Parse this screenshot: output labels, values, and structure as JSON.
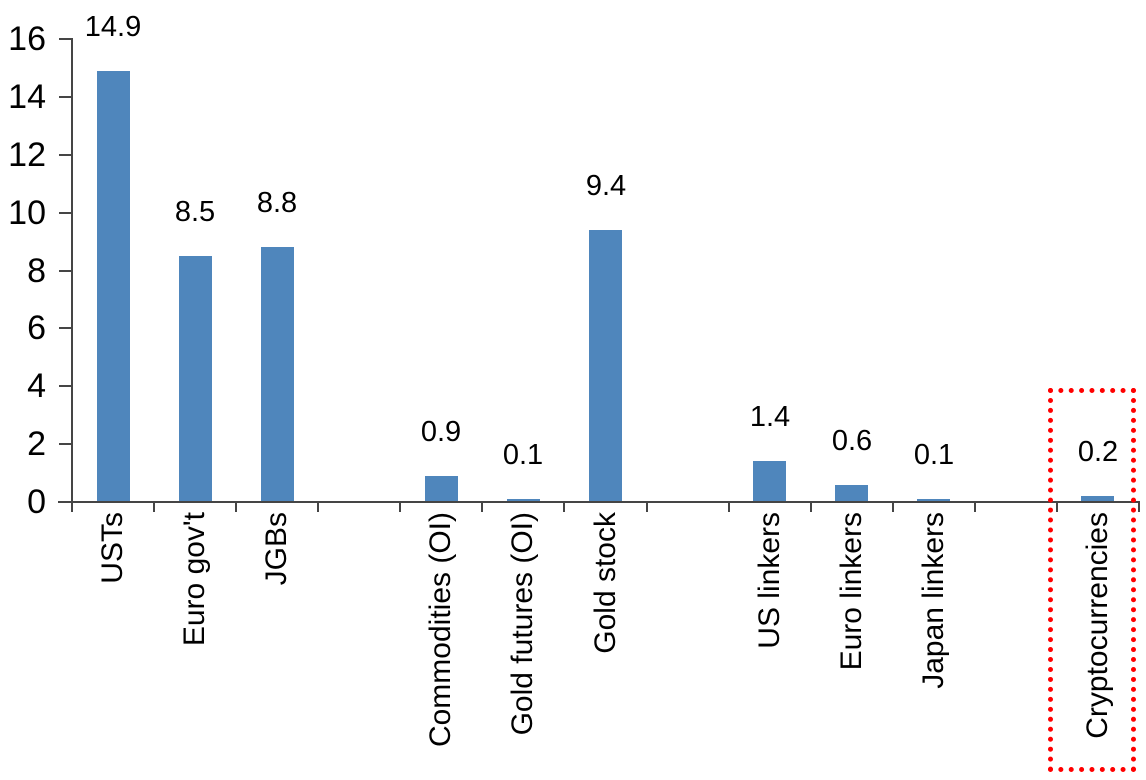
{
  "chart_data": {
    "type": "bar",
    "title": "",
    "xlabel": "",
    "ylabel": "",
    "categories": [
      "USTs",
      "Euro gov't",
      "JGBs",
      "",
      "Commodities (OI)",
      "Gold futures (OI)",
      "Gold stock",
      "",
      "US linkers",
      "Euro linkers",
      "Japan linkers",
      "",
      "Cryptocurrencies"
    ],
    "values": [
      14.9,
      8.5,
      8.8,
      null,
      0.9,
      0.1,
      9.4,
      null,
      1.4,
      0.6,
      0.1,
      null,
      0.2
    ],
    "data_labels": [
      "14.9",
      "8.5",
      "8.8",
      null,
      "0.9",
      "0.1",
      "9.4",
      null,
      "1.4",
      "0.6",
      "0.1",
      null,
      "0.2"
    ],
    "ylim": [
      0,
      16
    ],
    "yticks": [
      0,
      2,
      4,
      6,
      8,
      10,
      12,
      14,
      16
    ],
    "grid": false,
    "legend": "none",
    "bar_color": "#4f86bc",
    "axis_color": "#454545",
    "text_color": "#000000",
    "highlight": {
      "category": "Cryptocurrencies",
      "shape": "red-dotted-rectangle",
      "color": "#ff0000"
    }
  }
}
